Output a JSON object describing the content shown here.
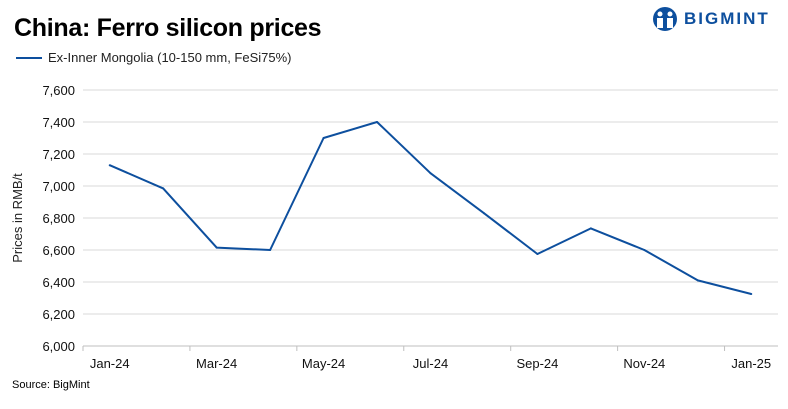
{
  "brand": "BIGMINT",
  "source": "Source:  BigMint",
  "colors": {
    "series": "#0d4f9e",
    "grid": "#d9d9d9",
    "brand": "#0d4f9e"
  },
  "chart_data": {
    "type": "line",
    "title": "China: Ferro silicon prices",
    "xlabel": "",
    "ylabel": "Prices in RMB/t",
    "ylim": [
      6000,
      7600
    ],
    "yticks": [
      "6,000",
      "6,200",
      "6,400",
      "6,600",
      "6,800",
      "7,000",
      "7,200",
      "7,400",
      "7,600"
    ],
    "ytick_values": [
      6000,
      6200,
      6400,
      6600,
      6800,
      7000,
      7200,
      7400,
      7600
    ],
    "categories": [
      "Jan-24",
      "Feb-24",
      "Mar-24",
      "Apr-24",
      "May-24",
      "Jun-24",
      "Jul-24",
      "Aug-24",
      "Sep-24",
      "Oct-24",
      "Nov-24",
      "Dec-24",
      "Jan-25"
    ],
    "xtick_labels": [
      "Jan-24",
      "Mar-24",
      "May-24",
      "Jul-24",
      "Sep-24",
      "Nov-24",
      "Jan-25"
    ],
    "grid": true,
    "legend": "top-left",
    "series": [
      {
        "name": "Ex-Inner Mongolia (10-150 mm, FeSi75%)",
        "values": [
          7130,
          6985,
          6615,
          6600,
          7300,
          7400,
          7080,
          6830,
          6575,
          6735,
          6600,
          6410,
          6325
        ]
      }
    ]
  }
}
